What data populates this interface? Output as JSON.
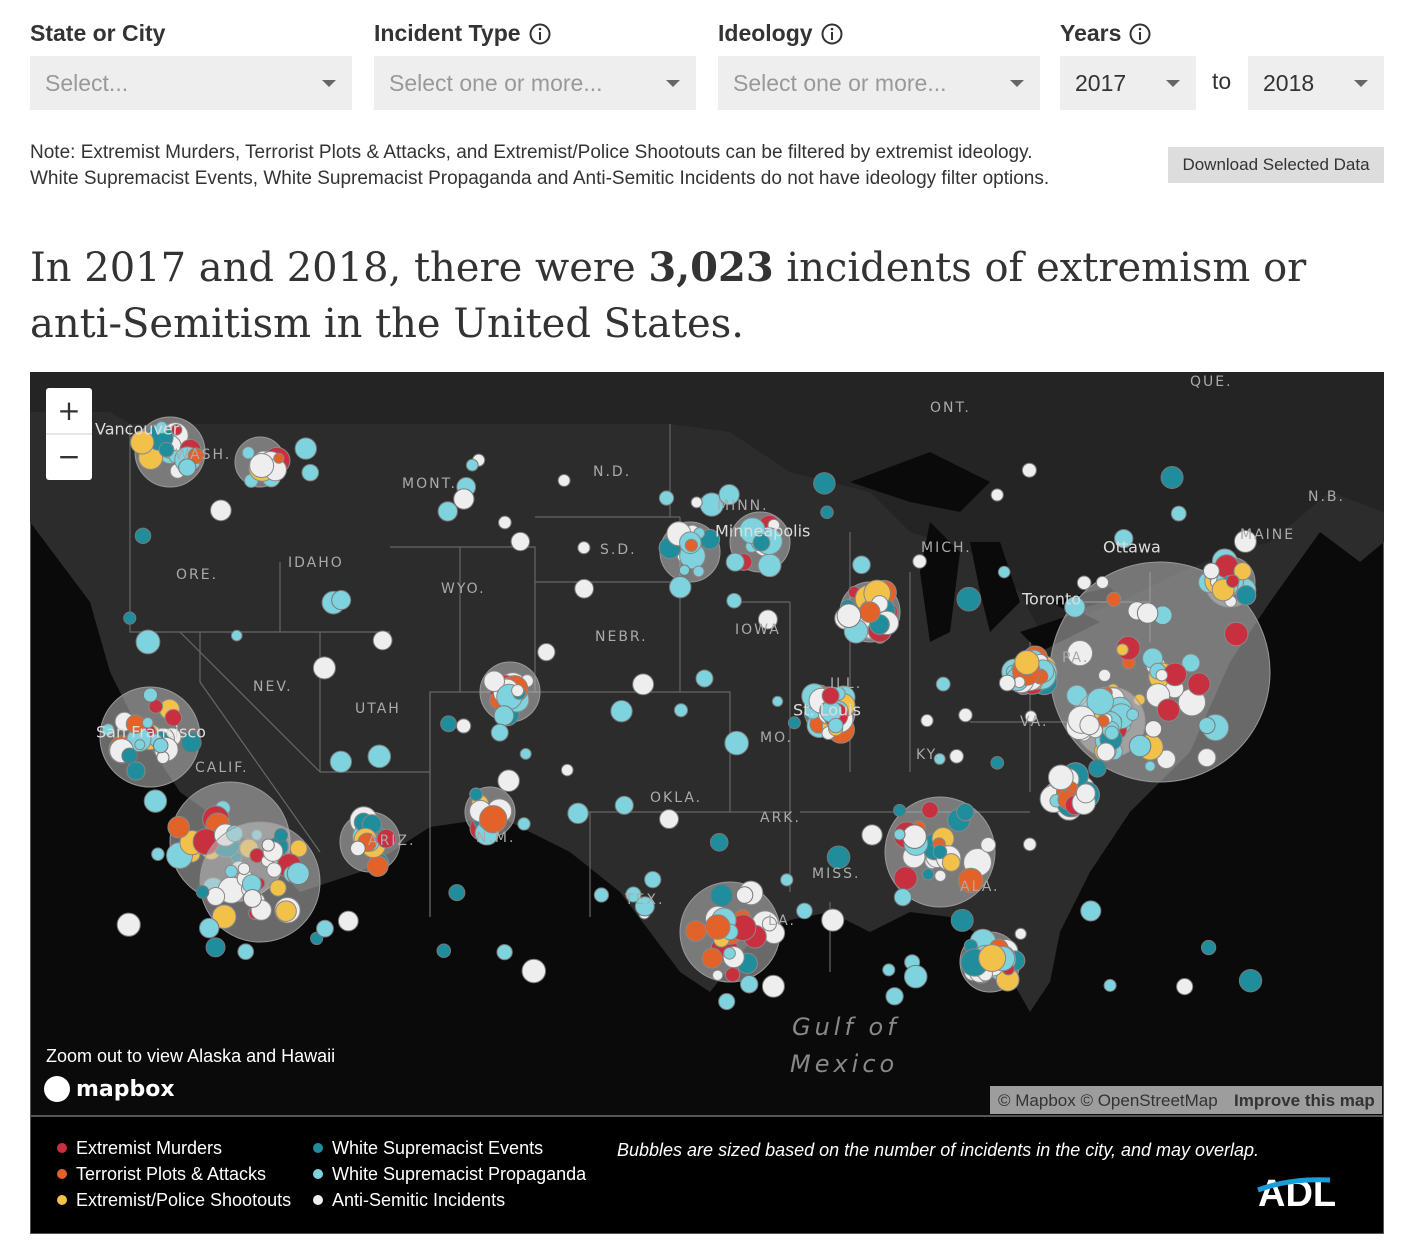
{
  "filters": {
    "state": {
      "label": "State or City",
      "placeholder": "Select..."
    },
    "incident": {
      "label": "Incident Type",
      "placeholder": "Select one or more..."
    },
    "ideology": {
      "label": "Ideology",
      "placeholder": "Select one or more..."
    },
    "years": {
      "label": "Years",
      "from": "2017",
      "to_word": "to",
      "to": "2018"
    }
  },
  "note": {
    "line1": "Note: Extremist Murders, Terrorist Plots & Attacks, and Extremist/Police Shootouts can be filtered by extremist ideology.",
    "line2": "White Supremacist Events, White Supremacist Propaganda and Anti-Semitic Incidents do not have ideology filter options."
  },
  "download_button": "Download Selected Data",
  "headline": {
    "before": "In 2017 and 2018, there were ",
    "count": "3,023",
    "after": " incidents of extremism or anti-Semitism in the United States."
  },
  "map": {
    "zoom_in": "+",
    "zoom_out": "−",
    "labels": [
      "Vancouver",
      "WASH.",
      "MONT.",
      "N.D.",
      "MINN.",
      "Minneapolis",
      "ONT.",
      "QUE.",
      "N.B.",
      "MAINE",
      "Ottawa",
      "MICH.",
      "S.D.",
      "IDAHO",
      "ORE.",
      "WYO.",
      "Toronto",
      "NEBR.",
      "IOWA",
      "PA.",
      "NEV.",
      "UTAH",
      "ILL.",
      "St. Louis",
      "MO.",
      "San Francisco",
      "CALIF.",
      "KY.",
      "VA.",
      "OKLA.",
      "ARK.",
      "ARIZ.",
      "N.M.",
      "MISS.",
      "ALA.",
      "TEX.",
      "LA."
    ],
    "gulf": [
      "Gulf of",
      "Mexico"
    ],
    "zoom_note": "Zoom out to view Alaska and Hawaii",
    "brand": "mapbox",
    "attribution": "© Mapbox © OpenStreetMap",
    "improve": "Improve this map"
  },
  "legend": {
    "items": [
      {
        "name": "Extremist Murders",
        "color": "#c8303f"
      },
      {
        "name": "Terrorist Plots & Attacks",
        "color": "#e2622a"
      },
      {
        "name": "Extremist/Police Shootouts",
        "color": "#f2c14a"
      },
      {
        "name": "White Supremacist Events",
        "color": "#1f8d9c"
      },
      {
        "name": "White Supremacist Propaganda",
        "color": "#7fd3de"
      },
      {
        "name": "Anti-Semitic Incidents",
        "color": "#eeeeee"
      }
    ],
    "caption": "Bubbles are sized based on the number of incidents in the city, and may overlap.",
    "logo": "ADL"
  }
}
